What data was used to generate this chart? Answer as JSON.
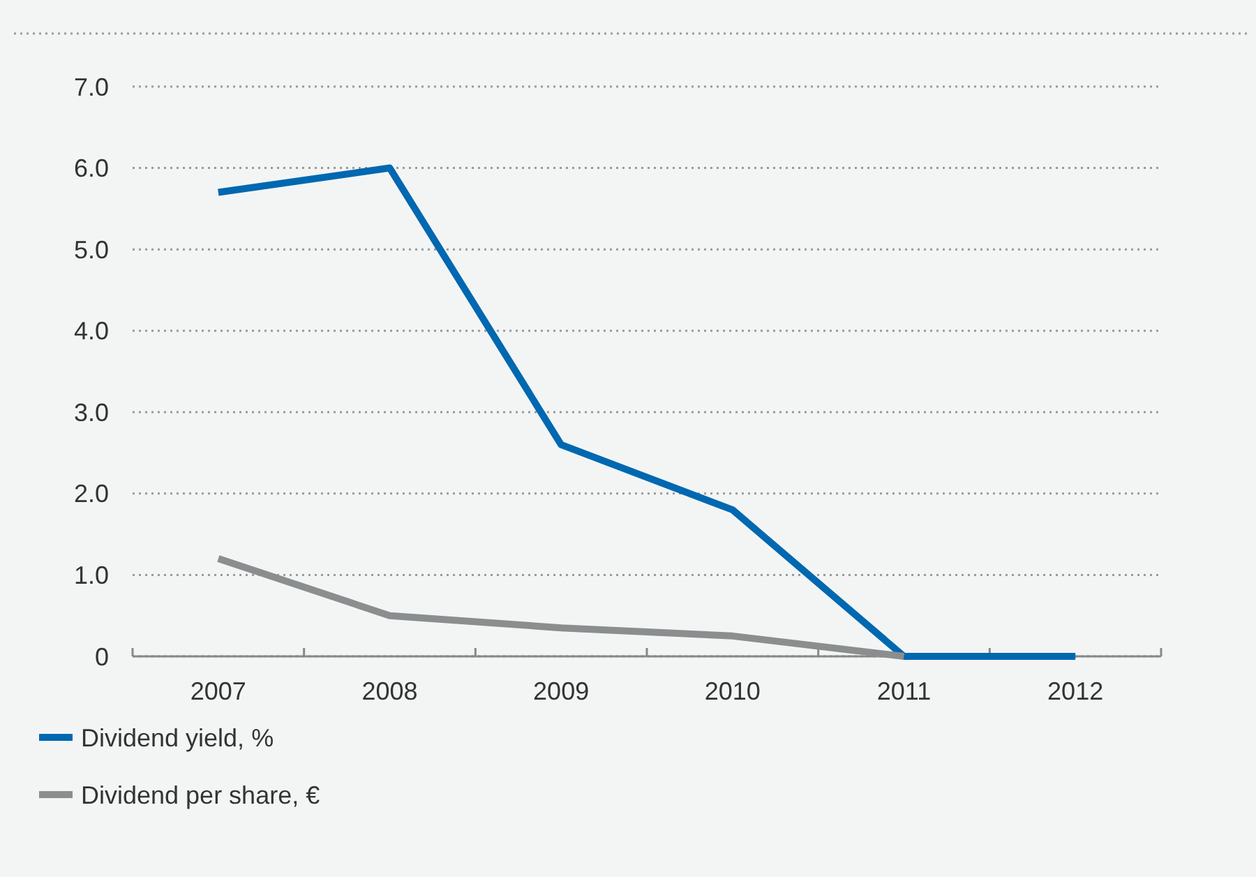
{
  "chart_data": {
    "type": "line",
    "categories": [
      "2007",
      "2008",
      "2009",
      "2010",
      "2011",
      "2012"
    ],
    "series": [
      {
        "name": "Dividend yield, %",
        "color": "#0068b0",
        "values": [
          5.7,
          6.0,
          2.6,
          1.8,
          0,
          0
        ]
      },
      {
        "name": "Dividend per share, €",
        "color": "#8a8e8f",
        "values": [
          1.2,
          0.5,
          0.35,
          0.25,
          0,
          null
        ]
      }
    ],
    "ylim": [
      0,
      7
    ],
    "yticks": [
      0,
      {
        "value": 1,
        "label": "1.0"
      },
      {
        "value": 2,
        "label": "2.0"
      },
      {
        "value": 3,
        "label": "3.0"
      },
      {
        "value": 4,
        "label": "4.0"
      },
      {
        "value": 5,
        "label": "5.0"
      },
      {
        "value": 6,
        "label": "6.0"
      },
      {
        "value": 7,
        "label": "7.0"
      }
    ],
    "grid": "y",
    "legend": "bottom",
    "marker": "none",
    "line_style": "solid"
  }
}
